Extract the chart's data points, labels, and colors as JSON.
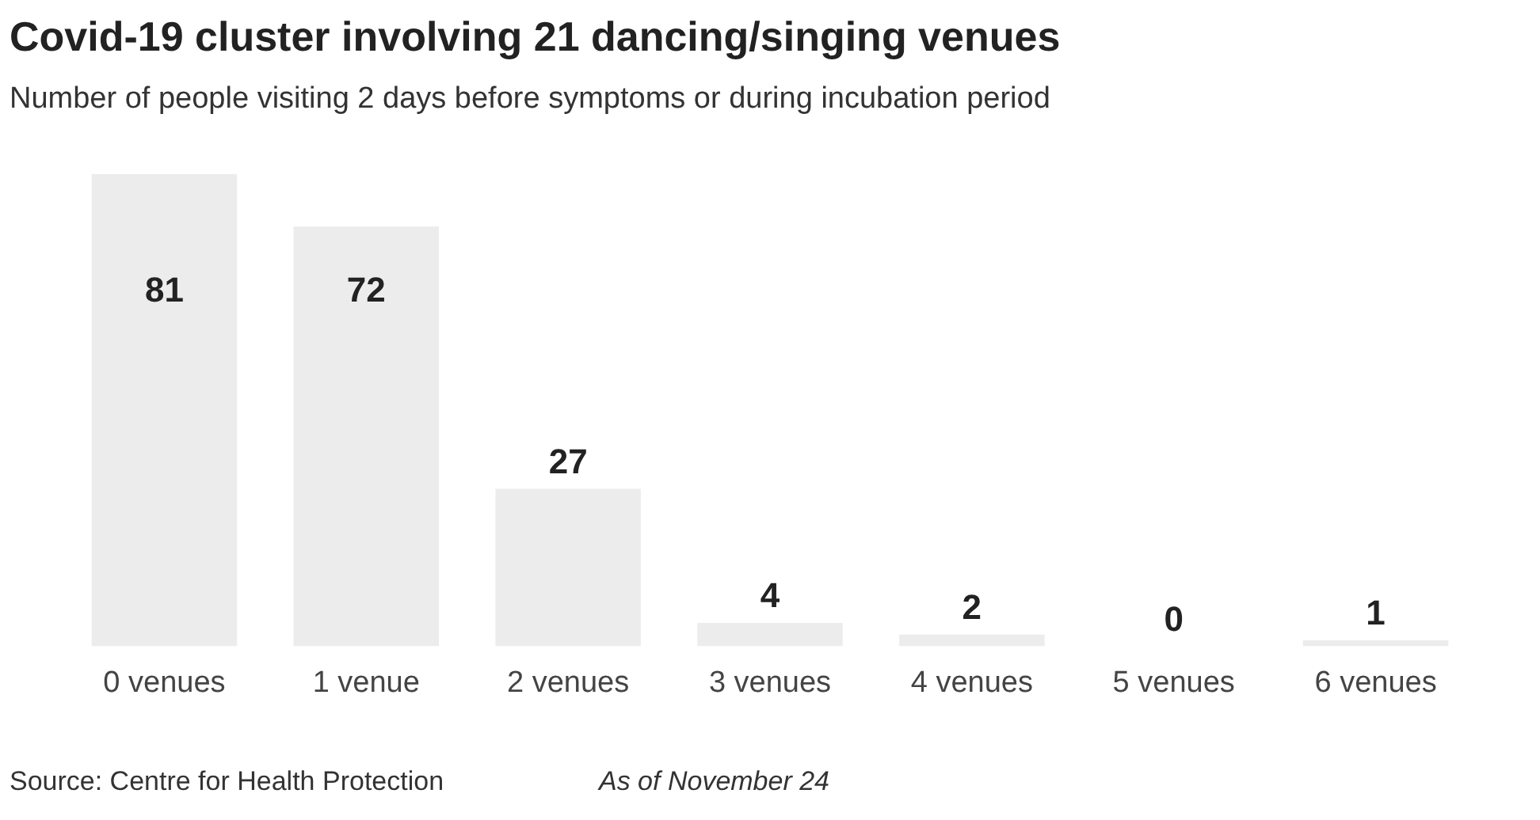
{
  "chart_data": {
    "type": "bar",
    "title": "Covid-19 cluster involving 21 dancing/singing venues",
    "subtitle": "Number of people visiting 2 days before symptoms or during incubation period",
    "categories": [
      "0 venues",
      "1 venue",
      "2 venues",
      "3 venues",
      "4 venues",
      "5 venues",
      "6 venues"
    ],
    "values": [
      81,
      72,
      27,
      4,
      2,
      0,
      1
    ],
    "color": "#ececec",
    "ylim": [
      0,
      81
    ],
    "tick_labels": "x",
    "grid": false,
    "legend": false,
    "data_labels": true,
    "annotations": [
      "Source: Centre for Health Protection",
      "As of November 24"
    ]
  }
}
